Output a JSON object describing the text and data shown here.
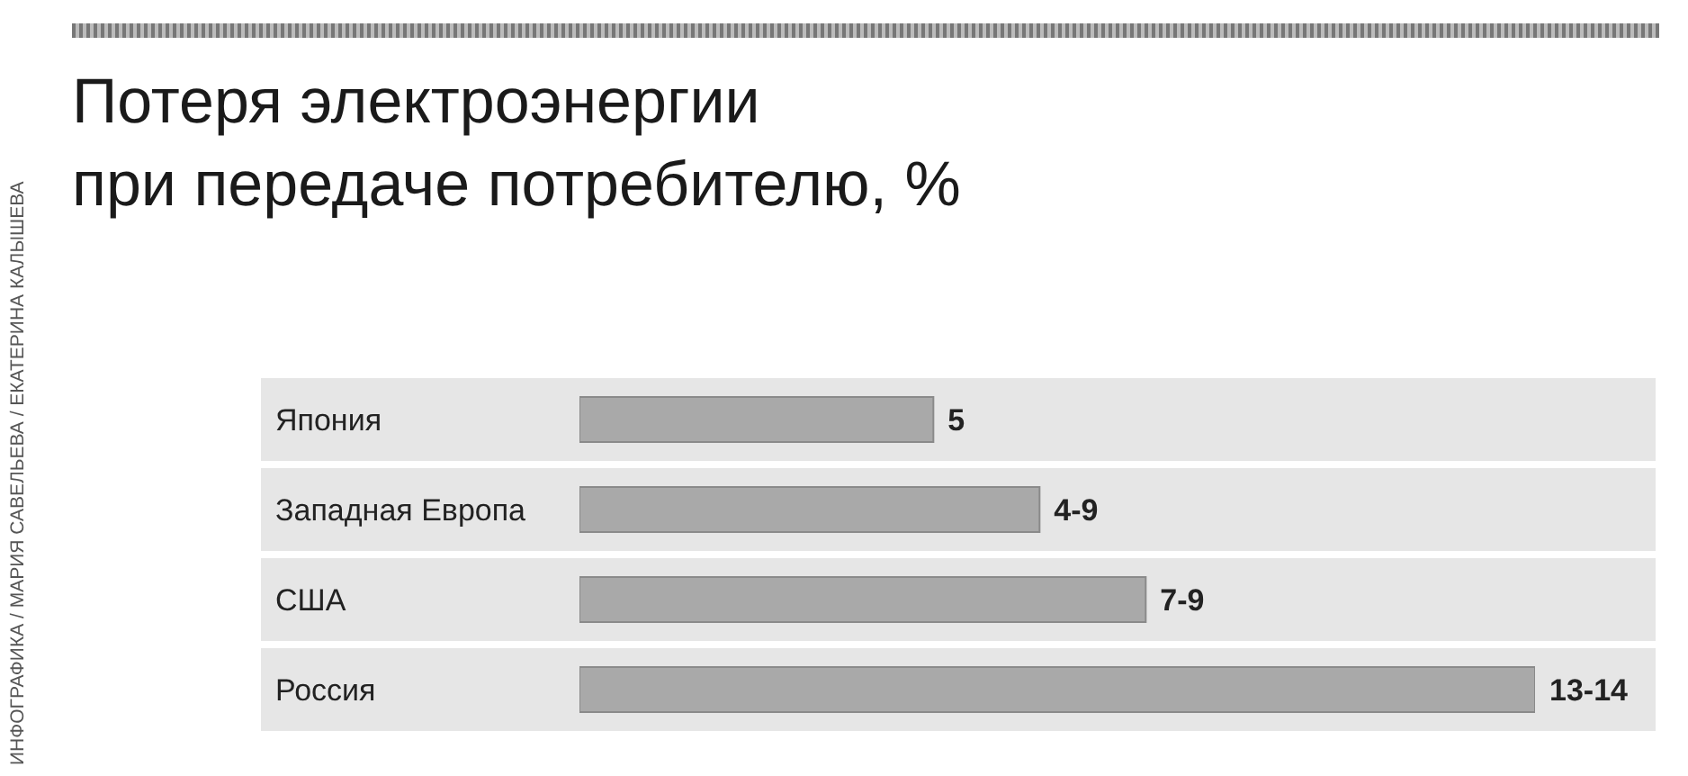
{
  "chart_data": {
    "type": "bar",
    "orientation": "horizontal",
    "title": "Потеря электроэнергии\nпри передаче потребителю, %",
    "annotations": [
      "ИНФОГРАФИКА / МАРИЯ САВЕЛЬЕВА / ЕКАТЕРИНА КАЛЫШЕВА"
    ],
    "categories": [
      "Япония",
      "Западная Европа",
      "США",
      "Россия"
    ],
    "values": [
      5,
      6.5,
      8,
      13.5
    ],
    "value_labels": [
      "5",
      "4-9",
      "7-9",
      "13-14"
    ],
    "color": "#a9a9a9"
  }
}
